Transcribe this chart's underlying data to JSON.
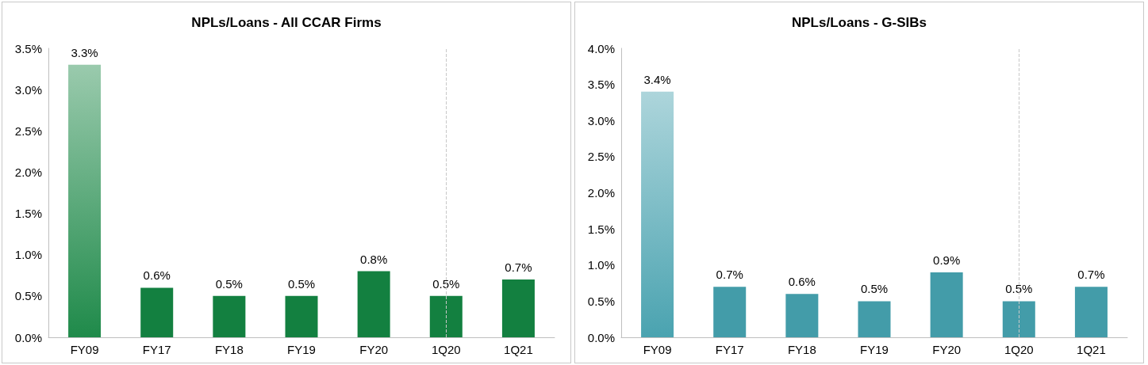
{
  "chart_data": [
    {
      "type": "bar",
      "title": "NPLs/Loans - All CCAR Firms",
      "categories": [
        "FY09",
        "FY17",
        "FY18",
        "FY19",
        "FY20",
        "1Q20",
        "1Q21"
      ],
      "values": [
        3.3,
        0.6,
        0.5,
        0.5,
        0.8,
        0.5,
        0.7
      ],
      "value_labels": [
        "3.3%",
        "0.6%",
        "0.5%",
        "0.5%",
        "0.8%",
        "0.5%",
        "0.7%"
      ],
      "colors": [
        "#1f8a4a",
        "#138040",
        "#138040",
        "#138040",
        "#138040",
        "#138040",
        "#138040"
      ],
      "ylim": [
        0,
        3.5
      ],
      "yticks": [
        {
          "value": 0,
          "label": "0.0%"
        },
        {
          "value": 0.5,
          "label": "0.5%"
        },
        {
          "value": 1,
          "label": "1.0%"
        },
        {
          "value": 1.5,
          "label": "1.5%"
        },
        {
          "value": 2,
          "label": "2.0%"
        },
        {
          "value": 2.5,
          "label": "2.5%"
        },
        {
          "value": 3,
          "label": "3.0%"
        },
        {
          "value": 3.5,
          "label": "3.5%"
        }
      ]
    },
    {
      "type": "bar",
      "title": "NPLs/Loans - G-SIBs",
      "categories": [
        "FY09",
        "FY17",
        "FY18",
        "FY19",
        "FY20",
        "1Q20",
        "1Q21"
      ],
      "values": [
        3.4,
        0.7,
        0.6,
        0.5,
        0.9,
        0.5,
        0.7
      ],
      "value_labels": [
        "3.4%",
        "0.7%",
        "0.6%",
        "0.5%",
        "0.9%",
        "0.5%",
        "0.7%"
      ],
      "colors": [
        "#4aa3b0",
        "#439ca9",
        "#439ca9",
        "#439ca9",
        "#439ca9",
        "#439ca9",
        "#439ca9"
      ],
      "ylim": [
        0,
        4
      ],
      "yticks": [
        {
          "value": 0,
          "label": "0.0%"
        },
        {
          "value": 0.5,
          "label": "0.5%"
        },
        {
          "value": 1,
          "label": "1.0%"
        },
        {
          "value": 1.5,
          "label": "1.5%"
        },
        {
          "value": 2,
          "label": "2.0%"
        },
        {
          "value": 2.5,
          "label": "2.5%"
        },
        {
          "value": 3,
          "label": "3.0%"
        },
        {
          "value": 3.5,
          "label": "3.5%"
        },
        {
          "value": 4,
          "label": "4.0%"
        }
      ]
    }
  ]
}
